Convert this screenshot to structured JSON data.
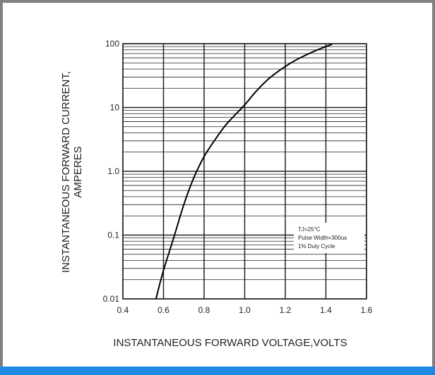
{
  "colors": {
    "background": "#808080",
    "panel": "#ffffff",
    "accent_bar": "#1e88e5",
    "grid": "#222222",
    "curve": "#000000"
  },
  "chart_data": {
    "type": "line",
    "title": "",
    "xlabel": "INSTANTANEOUS FORWARD VOLTAGE,VOLTS",
    "ylabel_lines": [
      "INSTANTANEOUS FORWARD CURRENT,",
      "AMPERES"
    ],
    "xlim": [
      0.4,
      1.6
    ],
    "ylim": [
      0.01,
      100
    ],
    "yscale": "log",
    "grid": true,
    "x_ticks": [
      "0.4",
      "0.6",
      "0.8",
      "1.0",
      "1.2",
      "1.4",
      "1.6"
    ],
    "y_ticks": [
      "0.01",
      "0.1",
      "1.0",
      "10",
      "100"
    ],
    "series": [
      {
        "x": [
          0.563,
          0.6,
          0.65,
          0.7,
          0.75,
          0.8,
          0.85,
          0.9,
          0.95,
          1.0,
          1.05,
          1.1,
          1.15,
          1.2,
          1.25,
          1.3,
          1.35,
          1.4,
          1.43
        ],
        "y": [
          0.01,
          0.028,
          0.09,
          0.3,
          0.8,
          1.7,
          3.0,
          5.0,
          7.5,
          11.0,
          17.0,
          25.0,
          34.0,
          44.0,
          55.0,
          66.0,
          78.0,
          90.0,
          98.0
        ]
      }
    ],
    "annotations": [
      "TJ=25°C",
      "Pulse Width=300us",
      "1% Duty Cycle"
    ]
  }
}
